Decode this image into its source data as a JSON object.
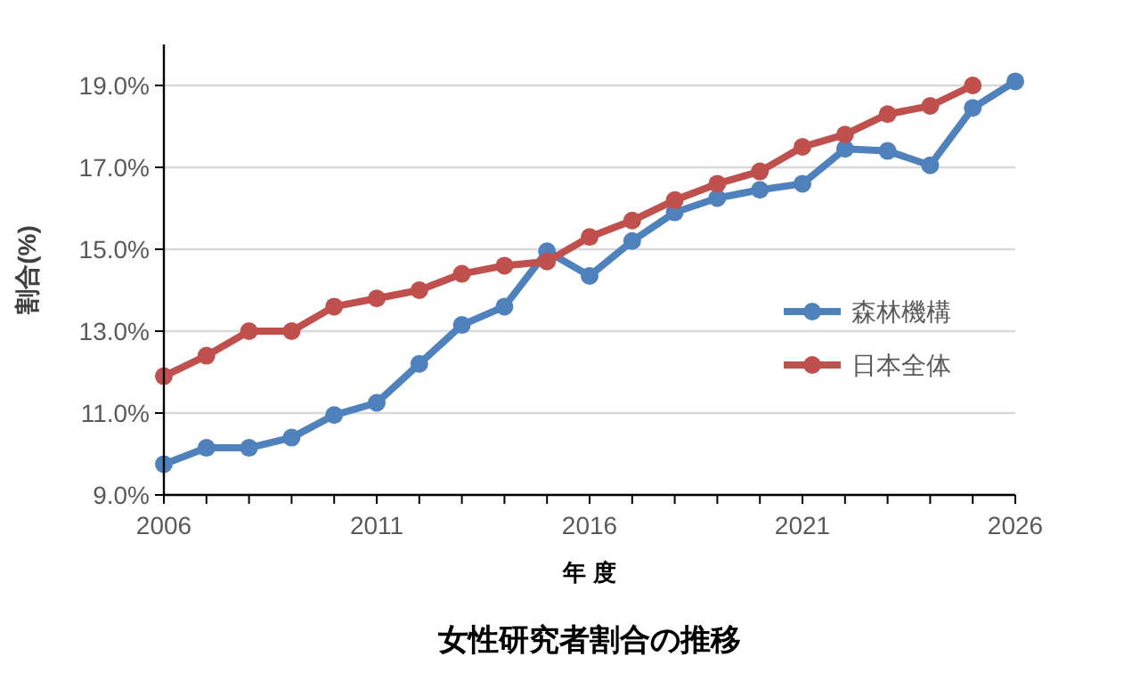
{
  "chart_data": {
    "type": "line",
    "title": "女性研究者割合の推移",
    "xlabel": "年 度",
    "ylabel": "割合(%)",
    "x": [
      2006,
      2007,
      2008,
      2009,
      2010,
      2011,
      2012,
      2013,
      2014,
      2015,
      2016,
      2017,
      2018,
      2019,
      2020,
      2021,
      2022,
      2023,
      2024,
      2025,
      2026
    ],
    "series": [
      {
        "name": "森林機構",
        "color": "#4f81bd",
        "values": [
          9.75,
          10.15,
          10.15,
          10.4,
          10.95,
          11.25,
          12.2,
          13.15,
          13.6,
          14.95,
          14.35,
          15.2,
          15.9,
          16.25,
          16.45,
          16.6,
          17.45,
          17.4,
          17.05,
          18.45,
          19.1
        ]
      },
      {
        "name": "日本全体",
        "color": "#c0504d",
        "values": [
          11.9,
          12.4,
          13.0,
          13.0,
          13.6,
          13.8,
          14.0,
          14.4,
          14.6,
          14.7,
          15.3,
          15.7,
          16.2,
          16.6,
          16.9,
          17.5,
          17.8,
          18.3,
          18.5,
          19.0,
          null
        ]
      }
    ],
    "xlim": [
      2006,
      2026
    ],
    "xticks": [
      2006,
      {
        "value": 2007,
        "label": null
      },
      {
        "value": 2008,
        "label": null
      },
      {
        "value": 2009,
        "label": null
      },
      {
        "value": 2010,
        "label": null
      },
      2011,
      {
        "value": 2012,
        "label": null
      },
      {
        "value": 2013,
        "label": null
      },
      {
        "value": 2014,
        "label": null
      },
      {
        "value": 2015,
        "label": null
      },
      2016,
      {
        "value": 2017,
        "label": null
      },
      {
        "value": 2018,
        "label": null
      },
      {
        "value": 2019,
        "label": null
      },
      {
        "value": 2020,
        "label": null
      },
      2021,
      {
        "value": 2022,
        "label": null
      },
      {
        "value": 2023,
        "label": null
      },
      {
        "value": 2024,
        "label": null
      },
      {
        "value": 2025,
        "label": null
      },
      2026
    ],
    "ylim": [
      9,
      20
    ],
    "yticks": [
      {
        "value": 9,
        "label": "9.0%"
      },
      {
        "value": 11,
        "label": "11.0%"
      },
      {
        "value": 13,
        "label": "13.0%"
      },
      {
        "value": 15,
        "label": "15.0%"
      },
      {
        "value": 17,
        "label": "17.0%"
      },
      {
        "value": 19,
        "label": "19.0%"
      }
    ],
    "grid": "y",
    "legend": "right",
    "marker": "circle",
    "line_style": "solid"
  }
}
